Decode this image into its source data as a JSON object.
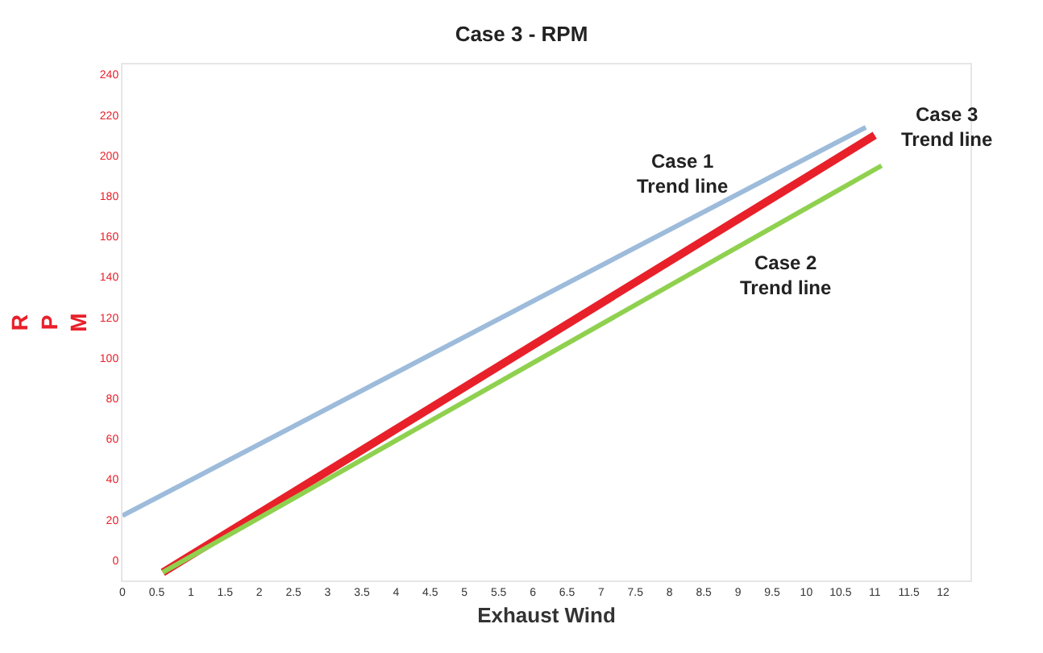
{
  "chart_data": {
    "type": "line",
    "title": "Case 3 - RPM",
    "xlabel": "Exhaust Wind",
    "ylabel": "RPM",
    "series": [
      {
        "color": "#9dbbdb",
        "x": [
          0,
          10.87
        ],
        "values": [
          22,
          214
        ]
      },
      {
        "color": "#e8202a",
        "x": [
          0.59,
          11.0
        ],
        "values": [
          -6,
          210
        ]
      },
      {
        "color": "#8fd14f",
        "x": [
          0.59,
          11.1
        ],
        "values": [
          -6,
          195
        ]
      }
    ],
    "annotations": [
      "Case 1\nTrend line",
      "Case 2\nTrend line",
      "Case 3\nTrend line"
    ],
    "xlim": [
      0,
      12.4
    ],
    "xticks": [
      0,
      0.5,
      1,
      1.5,
      2,
      2.5,
      3,
      3.5,
      4,
      4.5,
      5,
      5.5,
      6,
      6.5,
      7,
      7.5,
      8,
      8.5,
      9,
      9.5,
      10,
      10.5,
      11,
      11.5,
      12
    ],
    "ylim": [
      -10,
      245
    ],
    "yticks": [
      0,
      20,
      40,
      60,
      80,
      100,
      120,
      140,
      160,
      180,
      200,
      220,
      240
    ],
    "marker": "none",
    "line_style": "solid"
  }
}
